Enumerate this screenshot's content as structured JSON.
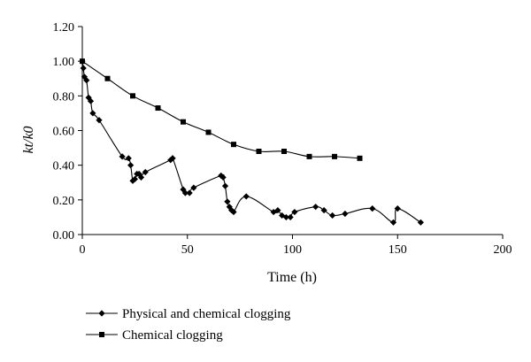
{
  "chart_data": {
    "type": "line",
    "xlabel": "Time (h)",
    "ylabel": "kt/k0",
    "xlim": [
      0,
      200
    ],
    "ylim": [
      0,
      1.2
    ],
    "x_ticks": [
      "0",
      "50",
      "100",
      "150",
      "200"
    ],
    "y_ticks": [
      "0.00",
      "0.20",
      "0.40",
      "0.60",
      "0.80",
      "1.00",
      "1.20"
    ],
    "grid": false,
    "legend_position": "bottom-left",
    "series": [
      {
        "name": "Physical and chemical clogging",
        "marker": "diamond",
        "x": [
          0,
          0.5,
          1,
          2,
          3,
          4,
          5,
          8,
          19,
          22,
          23,
          24,
          25,
          26,
          27,
          28,
          30,
          42,
          43,
          48,
          49,
          51,
          53,
          66,
          67,
          68,
          69,
          70,
          71,
          72,
          78,
          91,
          93,
          95,
          97,
          99,
          101,
          111,
          115,
          119,
          125,
          138,
          148,
          150,
          161
        ],
        "y": [
          1.0,
          0.96,
          0.91,
          0.89,
          0.79,
          0.77,
          0.7,
          0.66,
          0.45,
          0.44,
          0.4,
          0.31,
          0.32,
          0.35,
          0.35,
          0.33,
          0.36,
          0.43,
          0.44,
          0.26,
          0.24,
          0.24,
          0.27,
          0.34,
          0.33,
          0.28,
          0.19,
          0.16,
          0.14,
          0.13,
          0.22,
          0.13,
          0.14,
          0.11,
          0.1,
          0.1,
          0.13,
          0.16,
          0.14,
          0.11,
          0.12,
          0.15,
          0.07,
          0.15,
          0.07
        ]
      },
      {
        "name": "Chemical clogging",
        "marker": "square",
        "x": [
          0,
          12,
          24,
          36,
          48,
          60,
          72,
          84,
          96,
          108,
          120,
          132
        ],
        "y": [
          1.0,
          0.9,
          0.8,
          0.73,
          0.65,
          0.59,
          0.52,
          0.48,
          0.48,
          0.45,
          0.45,
          0.44
        ]
      }
    ]
  }
}
